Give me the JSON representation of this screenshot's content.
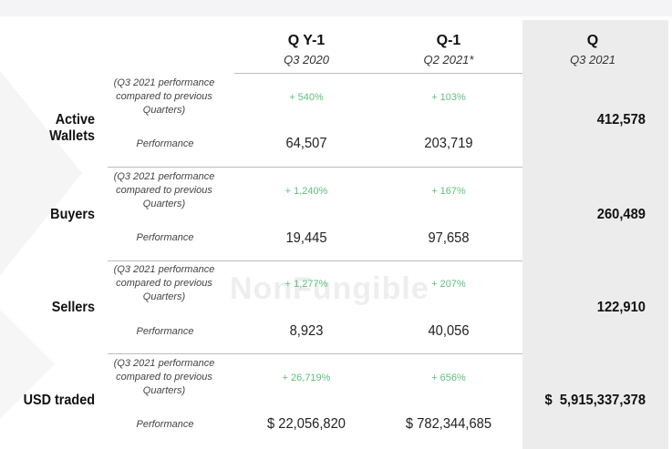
{
  "watermark": "NonFungible",
  "columns": {
    "prev_year": {
      "title": "Q Y-1",
      "subtitle": "Q3 2020"
    },
    "prev_quarter": {
      "title": "Q-1",
      "subtitle": "Q2 2021*"
    },
    "current": {
      "title": "Q",
      "subtitle": "Q3 2021"
    }
  },
  "comparison_label": "(Q3 2021 performance compared to previous Quarters)",
  "performance_label": "Performance",
  "rows": [
    {
      "metric": "Active Wallets",
      "pct_prev_year": "+ 540%",
      "pct_prev_quarter": "+ 103%",
      "val_prev_year": "64,507",
      "val_prev_quarter": "203,719",
      "val_current": "412,578"
    },
    {
      "metric": "Buyers",
      "pct_prev_year": "+ 1,240%",
      "pct_prev_quarter": "+ 167%",
      "val_prev_year": "19,445",
      "val_prev_quarter": "97,658",
      "val_current": "260,489"
    },
    {
      "metric": "Sellers",
      "pct_prev_year": "+ 1,277%",
      "pct_prev_quarter": "+ 207%",
      "val_prev_year": "8,923",
      "val_prev_quarter": "40,056",
      "val_current": "122,910"
    },
    {
      "metric": "USD traded",
      "pct_prev_year": "+ 26,719%",
      "pct_prev_quarter": "+ 656%",
      "val_prev_year": "$ 22,056,820",
      "val_prev_quarter": "$ 782,344,685",
      "val_current": "$  5,915,337,378"
    }
  ]
}
